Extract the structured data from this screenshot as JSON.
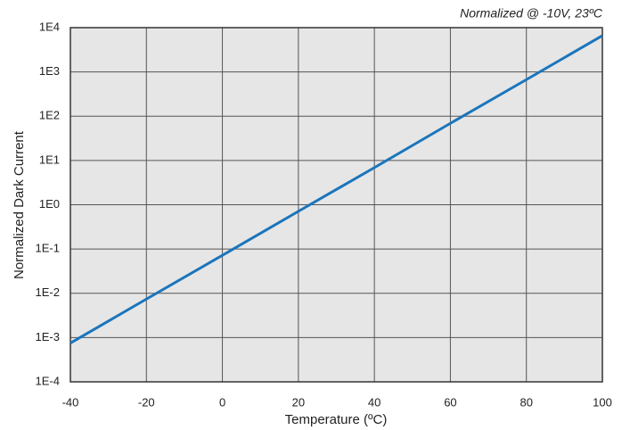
{
  "chart_data": {
    "type": "line",
    "annotation": "Normalized @ -10V, 23ºC",
    "x_label": "Temperature (ºC)",
    "y_label": "Normalized Dark Current",
    "x": [
      -40,
      -20,
      0,
      20,
      40,
      60,
      80,
      100
    ],
    "values": [
      0.00075,
      0.0074,
      0.072,
      0.71,
      6.9,
      69,
      670,
      6600
    ],
    "color": "#1a75bc",
    "log_y": true,
    "grid": true,
    "xlim": [
      -40,
      100
    ],
    "xticks": [
      -40,
      -20,
      0,
      20,
      40,
      60,
      80,
      100
    ],
    "ylim": [
      0.0001,
      10000
    ],
    "yticks": [
      {
        "value": 0.0001,
        "label": "1E-4"
      },
      {
        "value": 0.001,
        "label": "1E-3"
      },
      {
        "value": 0.01,
        "label": "1E-2"
      },
      {
        "value": 0.1,
        "label": "1E-1"
      },
      {
        "value": 1,
        "label": "1E0"
      },
      {
        "value": 10,
        "label": "1E1"
      },
      {
        "value": 100,
        "label": "1E2"
      },
      {
        "value": 1000,
        "label": "1E3"
      },
      {
        "value": 10000,
        "label": "1E4"
      }
    ]
  }
}
